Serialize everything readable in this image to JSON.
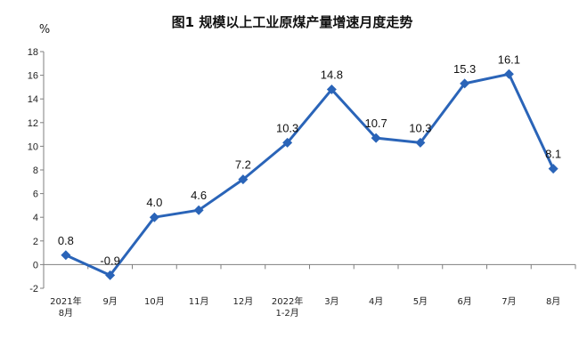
{
  "chart_data": {
    "type": "line",
    "title": "图1  规模以上工业原煤产量增速月度走势",
    "ylabel": "%",
    "xlabel": "",
    "ylim": [
      -2,
      18
    ],
    "yticks": [
      -2,
      0,
      2,
      4,
      6,
      8,
      10,
      12,
      14,
      16,
      18
    ],
    "grid": false,
    "categories": [
      [
        "2021年",
        "8月"
      ],
      [
        "9月"
      ],
      [
        "10月"
      ],
      [
        "11月"
      ],
      [
        "12月"
      ],
      [
        "2022年",
        "1-2月"
      ],
      [
        "3月"
      ],
      [
        "4月"
      ],
      [
        "5月"
      ],
      [
        "6月"
      ],
      [
        "7月"
      ],
      [
        "8月"
      ]
    ],
    "series": [
      {
        "values": [
          0.8,
          -0.9,
          4.0,
          4.6,
          7.2,
          10.3,
          14.8,
          10.7,
          10.3,
          15.3,
          16.1,
          8.1
        ],
        "labels": [
          "0.8",
          "-0.9",
          "4.0",
          "4.6",
          "7.2",
          "10.3",
          "14.8",
          "10.7",
          "10.3",
          "15.3",
          "16.1",
          "8.1"
        ],
        "color": "#2a64b8"
      }
    ]
  }
}
